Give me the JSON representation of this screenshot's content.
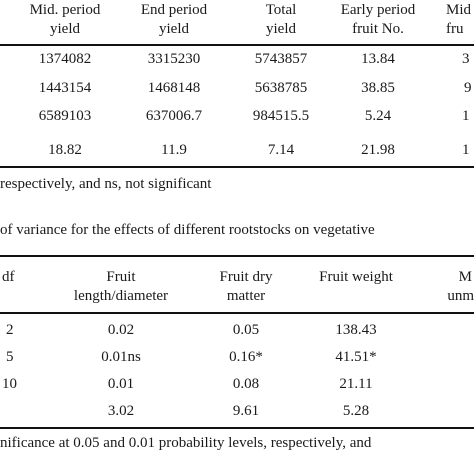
{
  "table1": {
    "headers": [
      {
        "line1": "Mid. period",
        "line2": "yield"
      },
      {
        "line1": "End period",
        "line2": "yield"
      },
      {
        "line1": "Total",
        "line2": "yield"
      },
      {
        "line1": "Early period",
        "line2": "fruit No."
      },
      {
        "line1": "Mid",
        "line2": "fru"
      }
    ],
    "rows": [
      [
        "1374082",
        "3315230",
        "5743857",
        "13.84",
        "3"
      ],
      [
        "1443154",
        "1468148",
        "5638785",
        "38.85",
        "9"
      ],
      [
        "6589103",
        "637006.7",
        "984515.5",
        "5.24",
        "1"
      ],
      [
        "18.82",
        "11.9",
        "7.14",
        "21.98",
        "1"
      ]
    ],
    "footnote": "respectively, and ns, not significant"
  },
  "table2": {
    "caption": "of variance for the effects of different rootstocks on vegetative",
    "headers": [
      {
        "line1": "df",
        "line2": ""
      },
      {
        "line1": "Fruit",
        "line2": "length/diameter"
      },
      {
        "line1": "Fruit dry",
        "line2": "matter"
      },
      {
        "line1": "Fruit weight",
        "line2": ""
      },
      {
        "line1": "M",
        "line2": "unm"
      }
    ],
    "rows": [
      [
        "2",
        "0.02",
        "0.05",
        "138.43"
      ],
      [
        "5",
        "0.01ns",
        "0.16*",
        "41.51*"
      ],
      [
        "10",
        "0.01",
        "0.08",
        "21.11"
      ],
      [
        "",
        "3.02",
        "9.61",
        "5.28"
      ]
    ],
    "footnote": "nificance at 0.05 and 0.01 probability levels, respectively, and"
  }
}
